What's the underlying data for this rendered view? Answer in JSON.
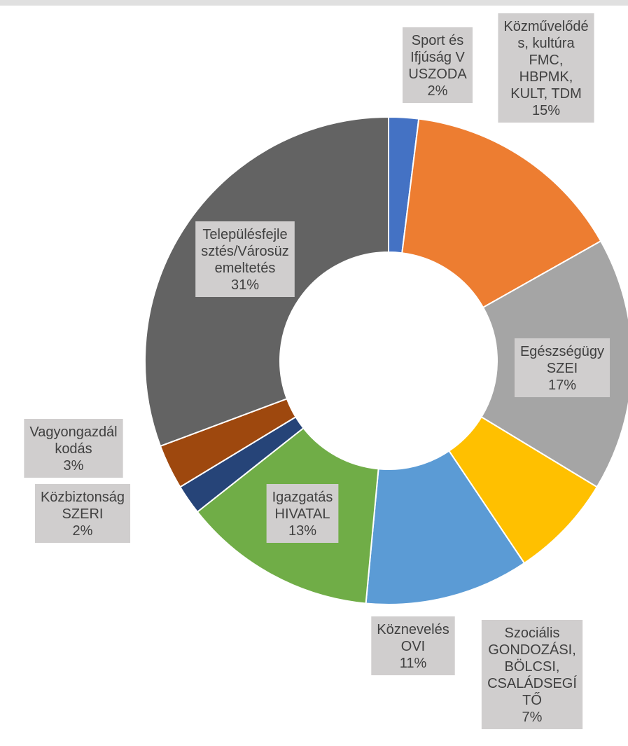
{
  "chart_data": {
    "type": "donut",
    "categories": [
      "Sport és\nIfjúság  V\nUSZODA",
      "Közművelődé\ns, kultúra\nFMC,\nHBPMK,\nKULT, TDM",
      "Egészségügy\nSZEI",
      "Szociális\nGONDOZÁSI,\nBÖLCSI,\nCSALÁDSEGÍ\nTŐ",
      "Köznevelés\nOVI",
      "Igazgatás\nHIVATAL",
      "Közbiztonság\nSZERI",
      "Vagyongazdál\nkodás",
      "Településfejle\nsztés/Városüz\nemeltetés"
    ],
    "values": [
      2,
      15,
      17,
      7,
      11,
      13,
      2,
      3,
      31
    ],
    "value_labels": [
      "2%",
      "15%",
      "17%",
      "7%",
      "11%",
      "13%",
      "2%",
      "3%",
      "31%"
    ],
    "colors": [
      "#4472c4",
      "#ed7d31",
      "#a5a5a5",
      "#ffc000",
      "#5b9bd5",
      "#70ad47",
      "#264478",
      "#9e480e",
      "#636363"
    ]
  }
}
